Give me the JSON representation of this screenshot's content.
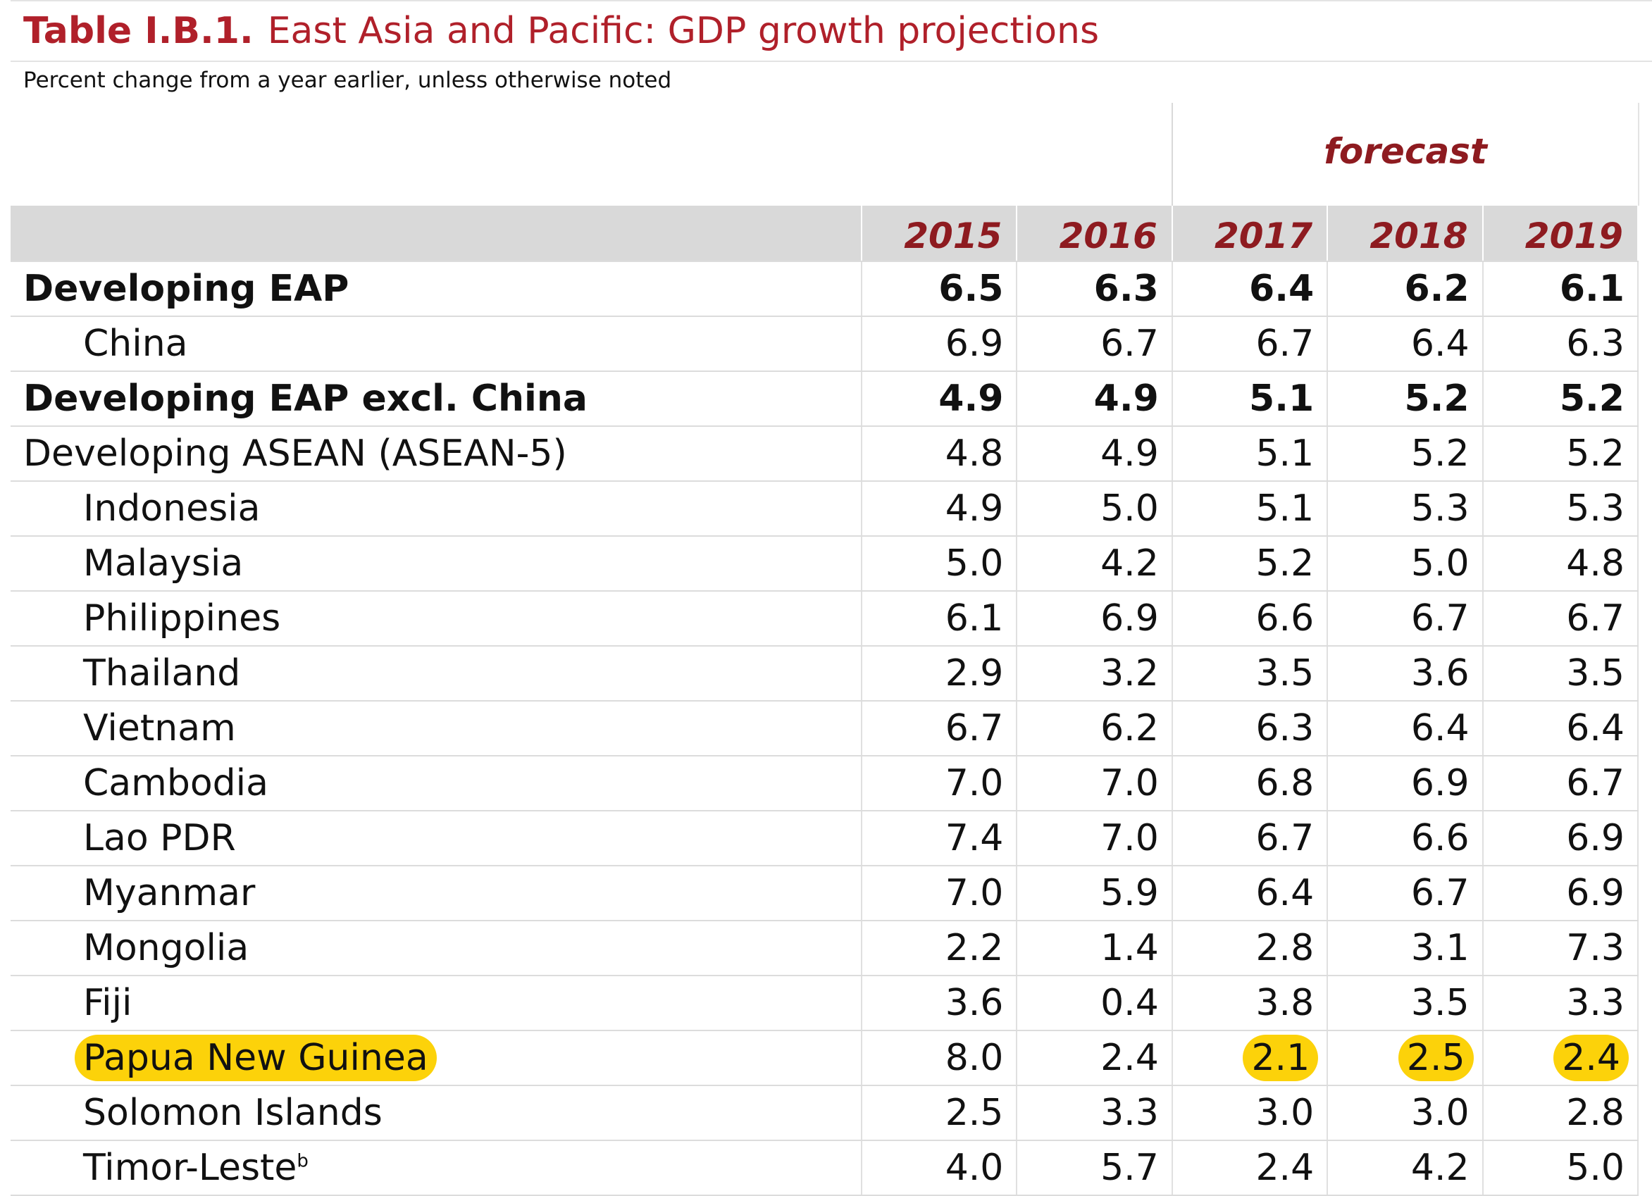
{
  "header": {
    "table_number": "Table I.B.1.",
    "title": "East Asia and Pacific: GDP growth projections",
    "subtitle": "Percent change from a year earlier, unless otherwise noted",
    "forecast_label": "forecast"
  },
  "columns": [
    "2015",
    "2016",
    "2017",
    "2018",
    "2019"
  ],
  "rows": [
    {
      "label": "Developing EAP",
      "values": [
        "6.5",
        "6.3",
        "6.4",
        "6.2",
        "6.1"
      ]
    },
    {
      "label": "China",
      "values": [
        "6.9",
        "6.7",
        "6.7",
        "6.4",
        "6.3"
      ]
    },
    {
      "label": "Developing EAP excl. China",
      "values": [
        "4.9",
        "4.9",
        "5.1",
        "5.2",
        "5.2"
      ]
    },
    {
      "label": "Developing ASEAN (ASEAN-5)",
      "values": [
        "4.8",
        "4.9",
        "5.1",
        "5.2",
        "5.2"
      ]
    },
    {
      "label": "Indonesia",
      "values": [
        "4.9",
        "5.0",
        "5.1",
        "5.3",
        "5.3"
      ]
    },
    {
      "label": "Malaysia",
      "values": [
        "5.0",
        "4.2",
        "5.2",
        "5.0",
        "4.8"
      ]
    },
    {
      "label": "Philippines",
      "values": [
        "6.1",
        "6.9",
        "6.6",
        "6.7",
        "6.7"
      ]
    },
    {
      "label": "Thailand",
      "values": [
        "2.9",
        "3.2",
        "3.5",
        "3.6",
        "3.5"
      ]
    },
    {
      "label": "Vietnam",
      "values": [
        "6.7",
        "6.2",
        "6.3",
        "6.4",
        "6.4"
      ]
    },
    {
      "label": "Cambodia",
      "values": [
        "7.0",
        "7.0",
        "6.8",
        "6.9",
        "6.7"
      ]
    },
    {
      "label": "Lao PDR",
      "values": [
        "7.4",
        "7.0",
        "6.7",
        "6.6",
        "6.9"
      ]
    },
    {
      "label": "Myanmar",
      "values": [
        "7.0",
        "5.9",
        "6.4",
        "6.7",
        "6.9"
      ]
    },
    {
      "label": "Mongolia",
      "values": [
        "2.2",
        "1.4",
        "2.8",
        "3.1",
        "7.3"
      ]
    },
    {
      "label": "Fiji",
      "values": [
        "3.6",
        "0.4",
        "3.8",
        "3.5",
        "3.3"
      ]
    },
    {
      "label": "Papua New Guinea",
      "values": [
        "8.0",
        "2.4",
        "2.1",
        "2.5",
        "2.4"
      ]
    },
    {
      "label": "Solomon Islands",
      "values": [
        "2.5",
        "3.3",
        "3.0",
        "3.0",
        "2.8"
      ]
    },
    {
      "label": "Timor-Leste",
      "footnote": "b",
      "values": [
        "4.0",
        "5.7",
        "2.4",
        "4.2",
        "5.0"
      ]
    }
  ],
  "colors": {
    "title": "#b0202a",
    "year_header": "#8e1b20",
    "header_band": "#d9d9d9",
    "highlight": "#fcd20a"
  }
}
